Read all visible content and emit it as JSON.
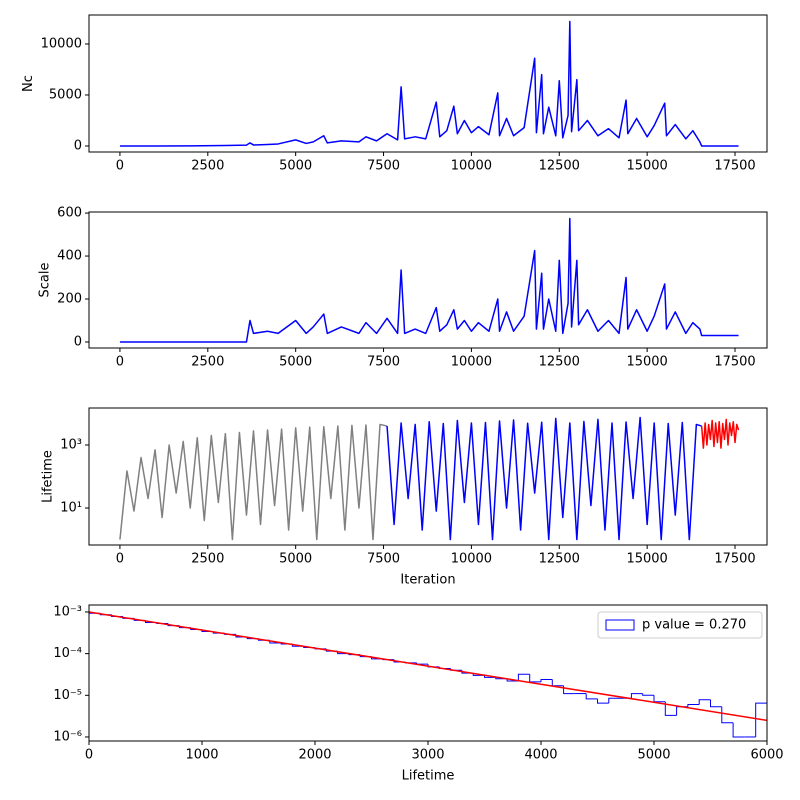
{
  "chart_data": [
    {
      "type": "line",
      "ylabel": "Nc",
      "xlim": [
        -880,
        18410
      ],
      "ylim": [
        -590,
        12840
      ],
      "xticks": [
        0,
        2500,
        5000,
        7500,
        10000,
        12500,
        15000,
        17500
      ],
      "yticks": [
        0,
        5000,
        10000
      ],
      "x": [
        0,
        1000,
        2000,
        3000,
        3600,
        3700,
        3800,
        4200,
        4500,
        5000,
        5300,
        5500,
        5800,
        5900,
        6300,
        6800,
        7000,
        7300,
        7600,
        7900,
        8000,
        8100,
        8400,
        8700,
        9000,
        9100,
        9300,
        9500,
        9600,
        9800,
        10000,
        10200,
        10500,
        10750,
        10800,
        11000,
        11200,
        11500,
        11800,
        11850,
        12000,
        12050,
        12200,
        12400,
        12500,
        12600,
        12750,
        12800,
        12850,
        13000,
        13050,
        13300,
        13600,
        13900,
        14200,
        14400,
        14450,
        14700,
        15000,
        15200,
        15500,
        15550,
        15800,
        16100,
        16300,
        16500,
        16550,
        17600
      ],
      "series": [
        {
          "color": "#0000ff",
          "values": [
            0,
            0,
            10,
            50,
            80,
            300,
            100,
            150,
            200,
            600,
            250,
            400,
            1000,
            300,
            500,
            400,
            900,
            500,
            1200,
            600,
            5800,
            700,
            900,
            700,
            4300,
            900,
            1500,
            3900,
            1200,
            2500,
            1300,
            1900,
            1100,
            5200,
            1000,
            2700,
            1000,
            1800,
            8600,
            1300,
            7000,
            1200,
            3800,
            1000,
            6400,
            800,
            3000,
            12200,
            1400,
            6500,
            1500,
            2500,
            1000,
            1700,
            800,
            4500,
            1200,
            2700,
            900,
            2000,
            4200,
            1000,
            2100,
            700,
            1500,
            400,
            0,
            0
          ]
        }
      ]
    },
    {
      "type": "line",
      "ylabel": "Scale",
      "xlim": [
        -880,
        18410
      ],
      "ylim": [
        -28,
        605
      ],
      "xticks": [
        0,
        2500,
        5000,
        7500,
        10000,
        12500,
        15000,
        17500
      ],
      "yticks": [
        0,
        200,
        400,
        600
      ],
      "x": [
        0,
        1000,
        2000,
        3000,
        3600,
        3700,
        3800,
        4200,
        4500,
        5000,
        5300,
        5500,
        5800,
        5900,
        6300,
        6800,
        7000,
        7300,
        7600,
        7900,
        8000,
        8100,
        8400,
        8700,
        9000,
        9100,
        9300,
        9500,
        9600,
        9800,
        10000,
        10200,
        10500,
        10750,
        10800,
        11000,
        11200,
        11500,
        11800,
        11850,
        12000,
        12050,
        12200,
        12400,
        12500,
        12600,
        12750,
        12800,
        12850,
        13000,
        13050,
        13300,
        13600,
        13900,
        14200,
        14400,
        14450,
        14700,
        15000,
        15200,
        15500,
        15550,
        15800,
        16100,
        16300,
        16500,
        16550,
        17600
      ],
      "series": [
        {
          "color": "#0000ff",
          "values": [
            0,
            0,
            0,
            0,
            0,
            100,
            40,
            50,
            40,
            100,
            40,
            70,
            130,
            40,
            70,
            40,
            90,
            40,
            110,
            40,
            335,
            40,
            60,
            40,
            160,
            50,
            80,
            150,
            60,
            100,
            50,
            90,
            50,
            200,
            50,
            140,
            50,
            120,
            425,
            60,
            320,
            60,
            200,
            50,
            380,
            40,
            180,
            575,
            70,
            380,
            80,
            150,
            50,
            100,
            40,
            300,
            60,
            150,
            50,
            120,
            270,
            60,
            140,
            40,
            90,
            60,
            30,
            30
          ]
        }
      ]
    },
    {
      "type": "line",
      "yscale": "log",
      "ylabel": "Lifetime",
      "xlabel": "Iteration",
      "xlim": [
        -880,
        18410
      ],
      "ylim": [
        0.67,
        14960
      ],
      "xticks": [
        0,
        2500,
        5000,
        7500,
        10000,
        12500,
        15000,
        17500
      ],
      "yticks": [
        {
          "value": 10,
          "label": "10¹"
        },
        {
          "value": 1000,
          "label": "10³"
        }
      ],
      "series": [
        {
          "color": "#808080",
          "x": [
            0,
            200,
            400,
            600,
            800,
            1000,
            1200,
            1400,
            1600,
            1800,
            2000,
            2200,
            2400,
            2600,
            2800,
            3000,
            3200,
            3400,
            3600,
            3800,
            4000,
            4200,
            4400,
            4600,
            4800,
            5000,
            5200,
            5400,
            5600,
            5800,
            6000,
            6200,
            6400,
            6600,
            6800,
            7000,
            7200,
            7400,
            7600
          ],
          "values": [
            1,
            150,
            8,
            400,
            20,
            700,
            5,
            1000,
            30,
            1300,
            10,
            1700,
            4,
            2000,
            15,
            2300,
            1,
            2500,
            6,
            2800,
            3,
            3000,
            12,
            3200,
            2,
            3500,
            8,
            3700,
            1,
            3800,
            20,
            4000,
            2,
            4200,
            10,
            4300,
            1,
            4500,
            4000
          ]
        },
        {
          "color": "#0000ff",
          "x": [
            7600,
            7800,
            8000,
            8200,
            8400,
            8600,
            8800,
            9000,
            9200,
            9400,
            9600,
            9800,
            10000,
            10200,
            10400,
            10600,
            10800,
            11000,
            11200,
            11400,
            11600,
            11800,
            12000,
            12200,
            12400,
            12600,
            12800,
            13000,
            13200,
            13400,
            13600,
            13800,
            14000,
            14200,
            14400,
            14600,
            14800,
            15000,
            15200,
            15400,
            15600,
            15800,
            16000,
            16200,
            16400,
            16550
          ],
          "values": [
            4000,
            3,
            5000,
            20,
            4500,
            2,
            5500,
            8,
            4800,
            1,
            6000,
            15,
            5000,
            3,
            5200,
            1,
            5800,
            10,
            6200,
            2,
            4900,
            30,
            5300,
            1,
            7000,
            5,
            5000,
            1,
            5600,
            12,
            6500,
            2,
            5000,
            1,
            5400,
            20,
            7500,
            3,
            5000,
            1,
            4800,
            6,
            5200,
            1,
            4500,
            4000
          ]
        },
        {
          "color": "#ff0000",
          "x": [
            16550,
            16600,
            16650,
            16700,
            16750,
            16800,
            16850,
            16900,
            16950,
            17000,
            17050,
            17100,
            17150,
            17200,
            17250,
            17300,
            17350,
            17400,
            17450,
            17500,
            17550,
            17600
          ],
          "values": [
            4000,
            800,
            5000,
            1000,
            4500,
            1500,
            6000,
            900,
            5000,
            1200,
            5500,
            800,
            4800,
            1500,
            6500,
            1000,
            5000,
            2000,
            5500,
            1200,
            4500,
            3000
          ]
        }
      ]
    },
    {
      "type": "histogram",
      "yscale": "log",
      "xlabel": "Lifetime",
      "xlim": [
        0,
        6000
      ],
      "ylim": [
        8e-07,
        0.00147
      ],
      "xticks": [
        0,
        1000,
        2000,
        3000,
        4000,
        5000,
        6000
      ],
      "yticks": [
        {
          "value": 1e-06,
          "label": "10⁻⁶"
        },
        {
          "value": 1e-05,
          "label": "10⁻⁵"
        },
        {
          "value": 0.0001,
          "label": "10⁻⁴"
        },
        {
          "value": 0.001,
          "label": "10⁻³"
        }
      ],
      "legend": "upper right",
      "bins": [
        0,
        100,
        200,
        300,
        400,
        500,
        600,
        700,
        800,
        900,
        1000,
        1100,
        1200,
        1300,
        1400,
        1500,
        1600,
        1700,
        1800,
        1900,
        2000,
        2100,
        2200,
        2300,
        2400,
        2500,
        2600,
        2700,
        2800,
        2900,
        3000,
        3100,
        3200,
        3300,
        3400,
        3500,
        3600,
        3700,
        3800,
        3900,
        4000,
        4100,
        4200,
        4300,
        4400,
        4500,
        4600,
        4700,
        4800,
        4900,
        5000,
        5100,
        5200,
        5300,
        5400,
        5500,
        5600,
        5700,
        5800,
        5900,
        6000
      ],
      "series": [
        {
          "name": "p value = 0.270",
          "color": "#0000ff",
          "values": [
            0.00093,
            0.00086,
            0.00078,
            0.0007,
            0.00063,
            0.00056,
            0.00053,
            0.00047,
            0.00042,
            0.00038,
            0.00034,
            0.00031,
            0.00029,
            0.00025,
            0.00023,
            0.00021,
            0.00018,
            0.00017,
            0.00015,
            0.00014,
            0.00013,
            0.000115,
            0.0001,
            9.5e-05,
            8.5e-05,
            7.5e-05,
            7.2e-05,
            6.3e-05,
            6e-05,
            5.6e-05,
            4.8e-05,
            4.4e-05,
            4e-05,
            3.4e-05,
            3e-05,
            2.7e-05,
            2.5e-05,
            2.2e-05,
            3.2e-05,
            2.1e-05,
            2.4e-05,
            1.7e-05,
            1.1e-05,
            1.1e-05,
            8.2e-06,
            6.5e-06,
            8.5e-06,
            8.5e-06,
            1.1e-05,
            1e-05,
            7e-06,
            3.3e-06,
            5.3e-06,
            6e-06,
            7.8e-06,
            5.3e-06,
            2.2e-06,
            1e-06,
            1e-06,
            6.5e-06
          ]
        }
      ],
      "fit": {
        "color": "#ff0000",
        "x": [
          0,
          6000
        ],
        "values": [
          0.001,
          2.5e-06
        ]
      }
    }
  ]
}
